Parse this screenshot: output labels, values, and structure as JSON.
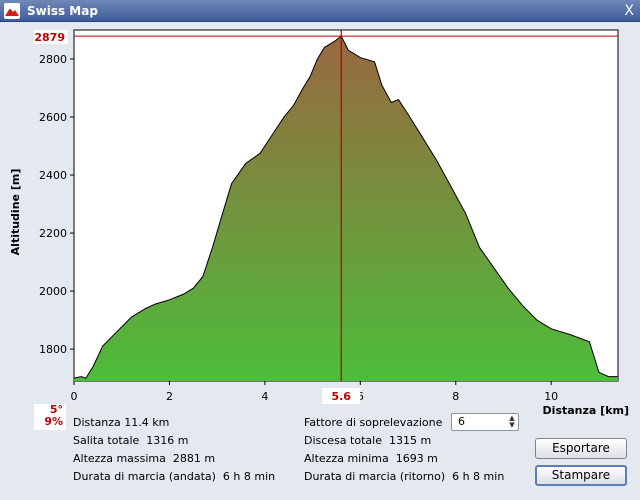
{
  "window": {
    "title": "Swiss Map",
    "close_glyph": "X",
    "icon": "swiss-map-icon"
  },
  "chart_data": {
    "type": "area",
    "title": "",
    "xlabel": "Distanza [km]",
    "ylabel": "Altitudine [m]",
    "xlim": [
      0,
      11.4
    ],
    "ylim": [
      1690,
      2900
    ],
    "x_ticks": [
      0,
      2,
      4,
      6,
      8,
      10
    ],
    "y_ticks": [
      1800,
      2000,
      2200,
      2400,
      2600,
      2800
    ],
    "grid": false,
    "colors": {
      "fill_top": "#9a6840",
      "fill_bottom": "#4cbd3a",
      "marker": "#b00000",
      "max_line": "#c00000"
    },
    "max_marker": {
      "label": "2879",
      "value": 2879
    },
    "position_marker": {
      "label": "5.6",
      "x": 5.6
    },
    "x": [
      0,
      0.15,
      0.25,
      0.4,
      0.6,
      0.9,
      1.2,
      1.5,
      1.7,
      2.0,
      2.3,
      2.5,
      2.7,
      2.9,
      3.1,
      3.3,
      3.6,
      3.9,
      4.2,
      4.4,
      4.6,
      4.8,
      4.95,
      5.1,
      5.25,
      5.45,
      5.6,
      5.75,
      6.0,
      6.3,
      6.45,
      6.65,
      6.8,
      7.0,
      7.3,
      7.6,
      7.9,
      8.2,
      8.5,
      8.8,
      9.1,
      9.4,
      9.7,
      10.0,
      10.4,
      10.8,
      11.0,
      11.2,
      11.4
    ],
    "y": [
      1700,
      1705,
      1700,
      1740,
      1810,
      1860,
      1910,
      1940,
      1955,
      1970,
      1990,
      2010,
      2050,
      2150,
      2260,
      2370,
      2440,
      2475,
      2550,
      2600,
      2640,
      2700,
      2740,
      2800,
      2840,
      2860,
      2879,
      2830,
      2805,
      2790,
      2710,
      2650,
      2660,
      2610,
      2530,
      2450,
      2360,
      2270,
      2150,
      2080,
      2010,
      1950,
      1900,
      1870,
      1850,
      1825,
      1720,
      1705,
      1705
    ]
  },
  "slope": {
    "degrees": "5°",
    "percent": "9%"
  },
  "stats": {
    "distanza": "Distanza 11.4 km",
    "salita": "Salita totale  1316 m",
    "altezza_max": "Altezza massima  2881 m",
    "durata_andata": "Durata di marcia (andata)  6 h 8 min",
    "fattore_label": "Fattore di soprelevazione",
    "discesa": "Discesa totale  1315 m",
    "altezza_min": "Altezza minima  1693 m",
    "durata_ritorno": "Durata di marcia (ritorno)  6 h 8 min"
  },
  "fattore": {
    "value": "6",
    "up_glyph": "▲",
    "down_glyph": "▼"
  },
  "buttons": {
    "export": "Esportare",
    "print": "Stampare"
  }
}
